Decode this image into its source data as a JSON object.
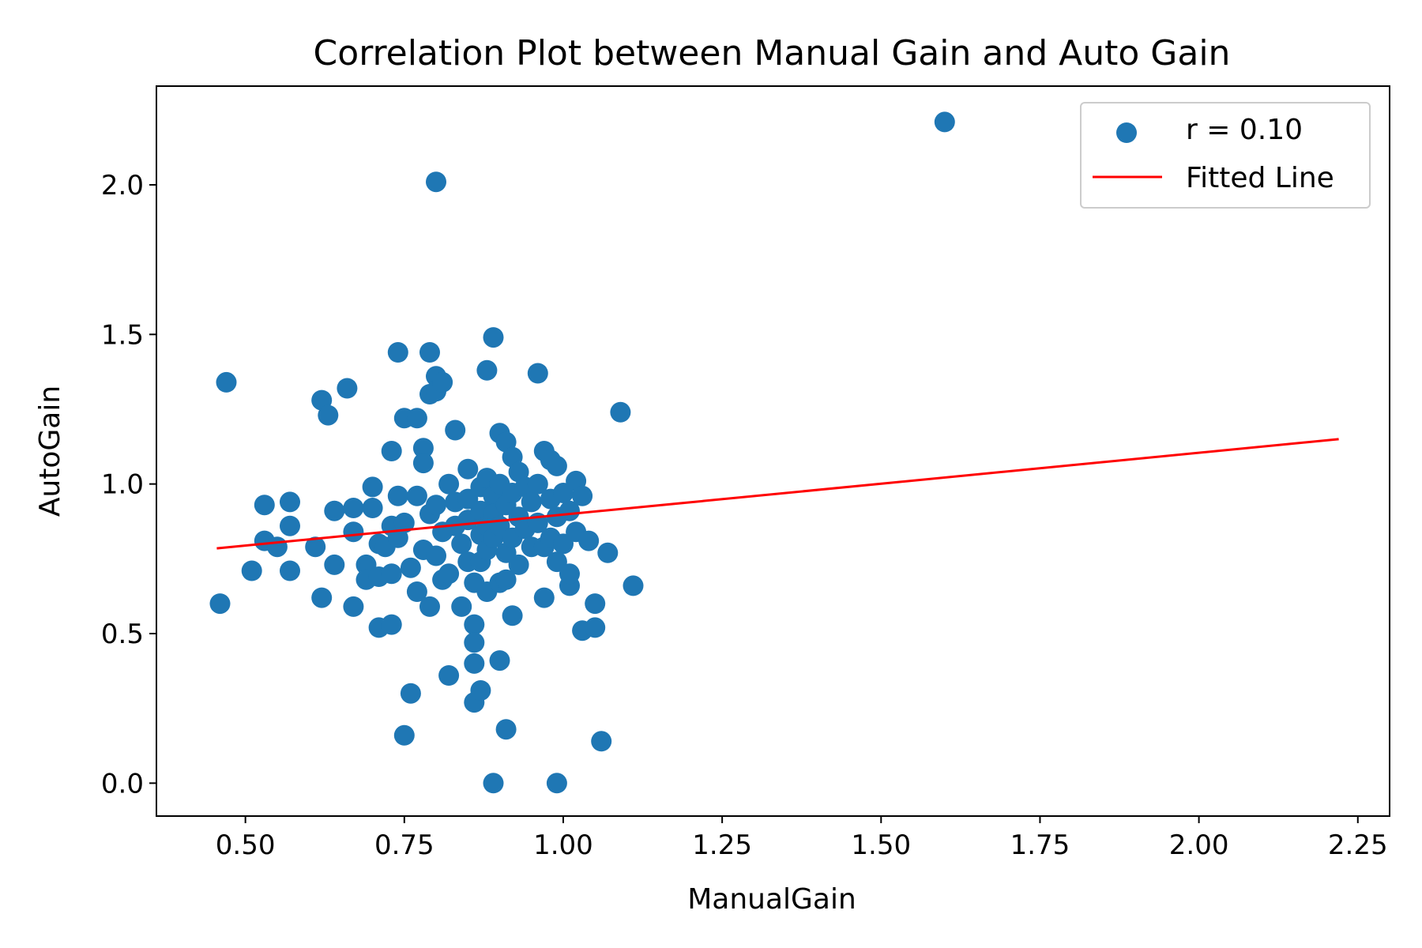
{
  "chart_data": {
    "type": "scatter",
    "title": "Correlation Plot between Manual Gain and Auto Gain",
    "xlabel": "ManualGain",
    "ylabel": "AutoGain",
    "xlim": [
      0.36,
      2.3
    ],
    "ylim": [
      -0.11,
      2.33
    ],
    "xticks": [
      0.5,
      0.75,
      1.0,
      1.25,
      1.5,
      1.75,
      2.0,
      2.25
    ],
    "xtick_labels": [
      "0.50",
      "0.75",
      "1.00",
      "1.25",
      "1.50",
      "1.75",
      "2.00",
      "2.25"
    ],
    "yticks": [
      0.0,
      0.5,
      1.0,
      1.5,
      2.0
    ],
    "ytick_labels": [
      "0.0",
      "0.5",
      "1.0",
      "1.5",
      "2.0"
    ],
    "grid": false,
    "legend_position": "top-right",
    "colors": {
      "points": "#1f77b4",
      "fit_line": "#ff0000"
    },
    "series": [
      {
        "name": "r = 0.10",
        "kind": "scatter",
        "points": [
          [
            0.46,
            0.6
          ],
          [
            0.47,
            1.34
          ],
          [
            0.51,
            0.71
          ],
          [
            0.53,
            0.93
          ],
          [
            0.53,
            0.81
          ],
          [
            0.55,
            0.79
          ],
          [
            0.57,
            0.94
          ],
          [
            0.57,
            0.86
          ],
          [
            0.57,
            0.71
          ],
          [
            0.61,
            0.79
          ],
          [
            0.62,
            1.28
          ],
          [
            0.63,
            1.23
          ],
          [
            0.62,
            0.62
          ],
          [
            0.64,
            0.91
          ],
          [
            0.64,
            0.73
          ],
          [
            0.66,
            1.32
          ],
          [
            0.67,
            0.92
          ],
          [
            0.67,
            0.84
          ],
          [
            0.67,
            0.59
          ],
          [
            0.69,
            0.73
          ],
          [
            0.69,
            0.68
          ],
          [
            0.7,
            0.99
          ],
          [
            0.7,
            0.92
          ],
          [
            0.71,
            0.8
          ],
          [
            0.71,
            0.69
          ],
          [
            0.71,
            0.52
          ],
          [
            0.72,
            0.79
          ],
          [
            0.73,
            0.86
          ],
          [
            0.73,
            0.7
          ],
          [
            0.73,
            0.53
          ],
          [
            0.73,
            1.11
          ],
          [
            0.74,
            0.96
          ],
          [
            0.74,
            0.82
          ],
          [
            0.74,
            1.44
          ],
          [
            0.75,
            1.22
          ],
          [
            0.75,
            0.87
          ],
          [
            0.75,
            0.16
          ],
          [
            0.76,
            0.3
          ],
          [
            0.76,
            0.72
          ],
          [
            0.77,
            0.96
          ],
          [
            0.77,
            0.64
          ],
          [
            0.77,
            1.22
          ],
          [
            0.78,
            1.12
          ],
          [
            0.78,
            0.78
          ],
          [
            0.78,
            1.07
          ],
          [
            0.79,
            0.9
          ],
          [
            0.79,
            1.3
          ],
          [
            0.79,
            1.44
          ],
          [
            0.79,
            0.59
          ],
          [
            0.8,
            2.01
          ],
          [
            0.8,
            0.93
          ],
          [
            0.8,
            0.76
          ],
          [
            0.8,
            1.36
          ],
          [
            0.8,
            1.31
          ],
          [
            0.81,
            1.34
          ],
          [
            0.81,
            0.84
          ],
          [
            0.81,
            0.68
          ],
          [
            0.82,
            1.0
          ],
          [
            0.82,
            0.36
          ],
          [
            0.82,
            0.7
          ],
          [
            0.83,
            1.18
          ],
          [
            0.83,
            0.94
          ],
          [
            0.83,
            0.86
          ],
          [
            0.84,
            0.8
          ],
          [
            0.84,
            0.59
          ],
          [
            0.85,
            1.05
          ],
          [
            0.85,
            0.95
          ],
          [
            0.85,
            0.88
          ],
          [
            0.85,
            0.74
          ],
          [
            0.86,
            0.67
          ],
          [
            0.86,
            0.53
          ],
          [
            0.86,
            0.47
          ],
          [
            0.86,
            0.27
          ],
          [
            0.86,
            0.4
          ],
          [
            0.87,
            0.99
          ],
          [
            0.87,
            0.91
          ],
          [
            0.87,
            0.83
          ],
          [
            0.87,
            0.74
          ],
          [
            0.87,
            0.31
          ],
          [
            0.88,
            1.02
          ],
          [
            0.88,
            0.86
          ],
          [
            0.88,
            0.78
          ],
          [
            0.88,
            1.38
          ],
          [
            0.88,
            0.64
          ],
          [
            0.89,
            0.0
          ],
          [
            0.89,
            0.96
          ],
          [
            0.89,
            1.49
          ],
          [
            0.89,
            0.9
          ],
          [
            0.89,
            0.82
          ],
          [
            0.9,
            0.67
          ],
          [
            0.9,
            0.41
          ],
          [
            0.9,
            1.0
          ],
          [
            0.9,
            0.86
          ],
          [
            0.9,
            1.17
          ],
          [
            0.91,
            0.93
          ],
          [
            0.91,
            0.77
          ],
          [
            0.91,
            1.14
          ],
          [
            0.91,
            0.18
          ],
          [
            0.91,
            0.68
          ],
          [
            0.92,
            0.97
          ],
          [
            0.92,
            1.09
          ],
          [
            0.92,
            0.82
          ],
          [
            0.92,
            0.56
          ],
          [
            0.93,
            1.04
          ],
          [
            0.93,
            0.89
          ],
          [
            0.93,
            0.73
          ],
          [
            0.94,
            0.99
          ],
          [
            0.94,
            0.85
          ],
          [
            0.95,
            0.94
          ],
          [
            0.95,
            0.79
          ],
          [
            0.96,
            1.37
          ],
          [
            0.96,
            1.0
          ],
          [
            0.96,
            0.87
          ],
          [
            0.97,
            0.79
          ],
          [
            0.97,
            0.62
          ],
          [
            0.97,
            1.11
          ],
          [
            0.98,
            0.95
          ],
          [
            0.98,
            1.08
          ],
          [
            0.98,
            0.82
          ],
          [
            0.99,
            0.0
          ],
          [
            0.99,
            1.06
          ],
          [
            0.99,
            0.89
          ],
          [
            0.99,
            0.74
          ],
          [
            1.0,
            0.8
          ],
          [
            1.0,
            0.97
          ],
          [
            1.01,
            0.66
          ],
          [
            1.01,
            0.91
          ],
          [
            1.01,
            0.7
          ],
          [
            1.02,
            1.01
          ],
          [
            1.02,
            0.84
          ],
          [
            1.03,
            0.96
          ],
          [
            1.03,
            0.51
          ],
          [
            1.04,
            0.81
          ],
          [
            1.05,
            0.6
          ],
          [
            1.05,
            0.52
          ],
          [
            1.06,
            0.14
          ],
          [
            1.07,
            0.77
          ],
          [
            1.09,
            1.24
          ],
          [
            1.11,
            0.66
          ],
          [
            1.6,
            2.21
          ]
        ]
      },
      {
        "name": "Fitted Line",
        "kind": "line",
        "points": [
          [
            0.455,
            0.785
          ],
          [
            2.22,
            1.15
          ]
        ]
      }
    ]
  }
}
